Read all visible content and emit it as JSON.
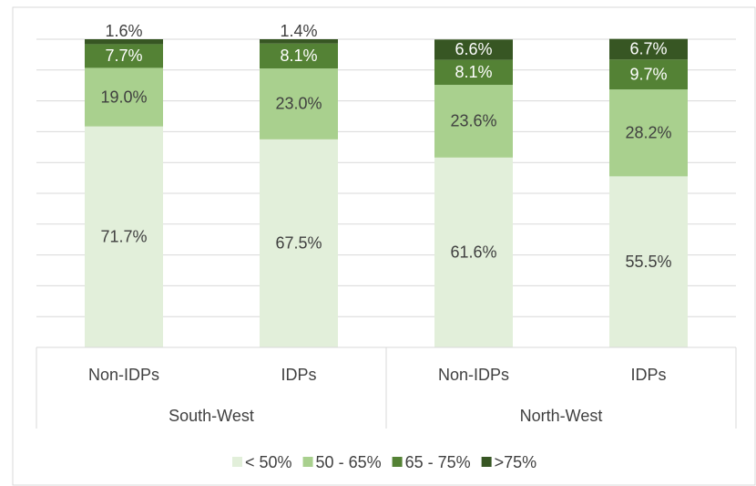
{
  "chart_data": {
    "type": "stacked_bar",
    "categories": [
      "Non-IDPs",
      "IDPs",
      "Non-IDPs",
      "IDPs"
    ],
    "groups": [
      {
        "name": "South-West",
        "span": 2
      },
      {
        "name": "North-West",
        "span": 2
      }
    ],
    "series": [
      {
        "name": "< 50%",
        "color": "#e2efda",
        "values": [
          71.7,
          67.5,
          61.6,
          55.5
        ],
        "value_labels": [
          "71.7%",
          "67.5%",
          "61.6%",
          "55.5%"
        ]
      },
      {
        "name": "50 - 65%",
        "color": "#a9d08e",
        "values": [
          19.0,
          23.0,
          23.6,
          28.2
        ],
        "value_labels": [
          "19.0%",
          "23.0%",
          "23.6%",
          "28.2%"
        ]
      },
      {
        "name": "65 - 75%",
        "color": "#548235",
        "values": [
          7.7,
          8.1,
          8.1,
          9.7
        ],
        "value_labels": [
          "7.7%",
          "8.1%",
          "8.1%",
          "9.7%"
        ]
      },
      {
        "name": ">75%",
        "color": "#375623",
        "values": [
          1.6,
          1.4,
          6.6,
          6.7
        ],
        "value_labels": [
          "1.6%",
          "1.4%",
          "6.6%",
          "6.7%"
        ]
      }
    ],
    "ylim": [
      0,
      100
    ],
    "yticks": [
      0,
      10,
      20,
      30,
      40,
      50,
      60,
      70,
      80,
      90,
      100
    ],
    "grid": true,
    "legend": "bottom"
  }
}
